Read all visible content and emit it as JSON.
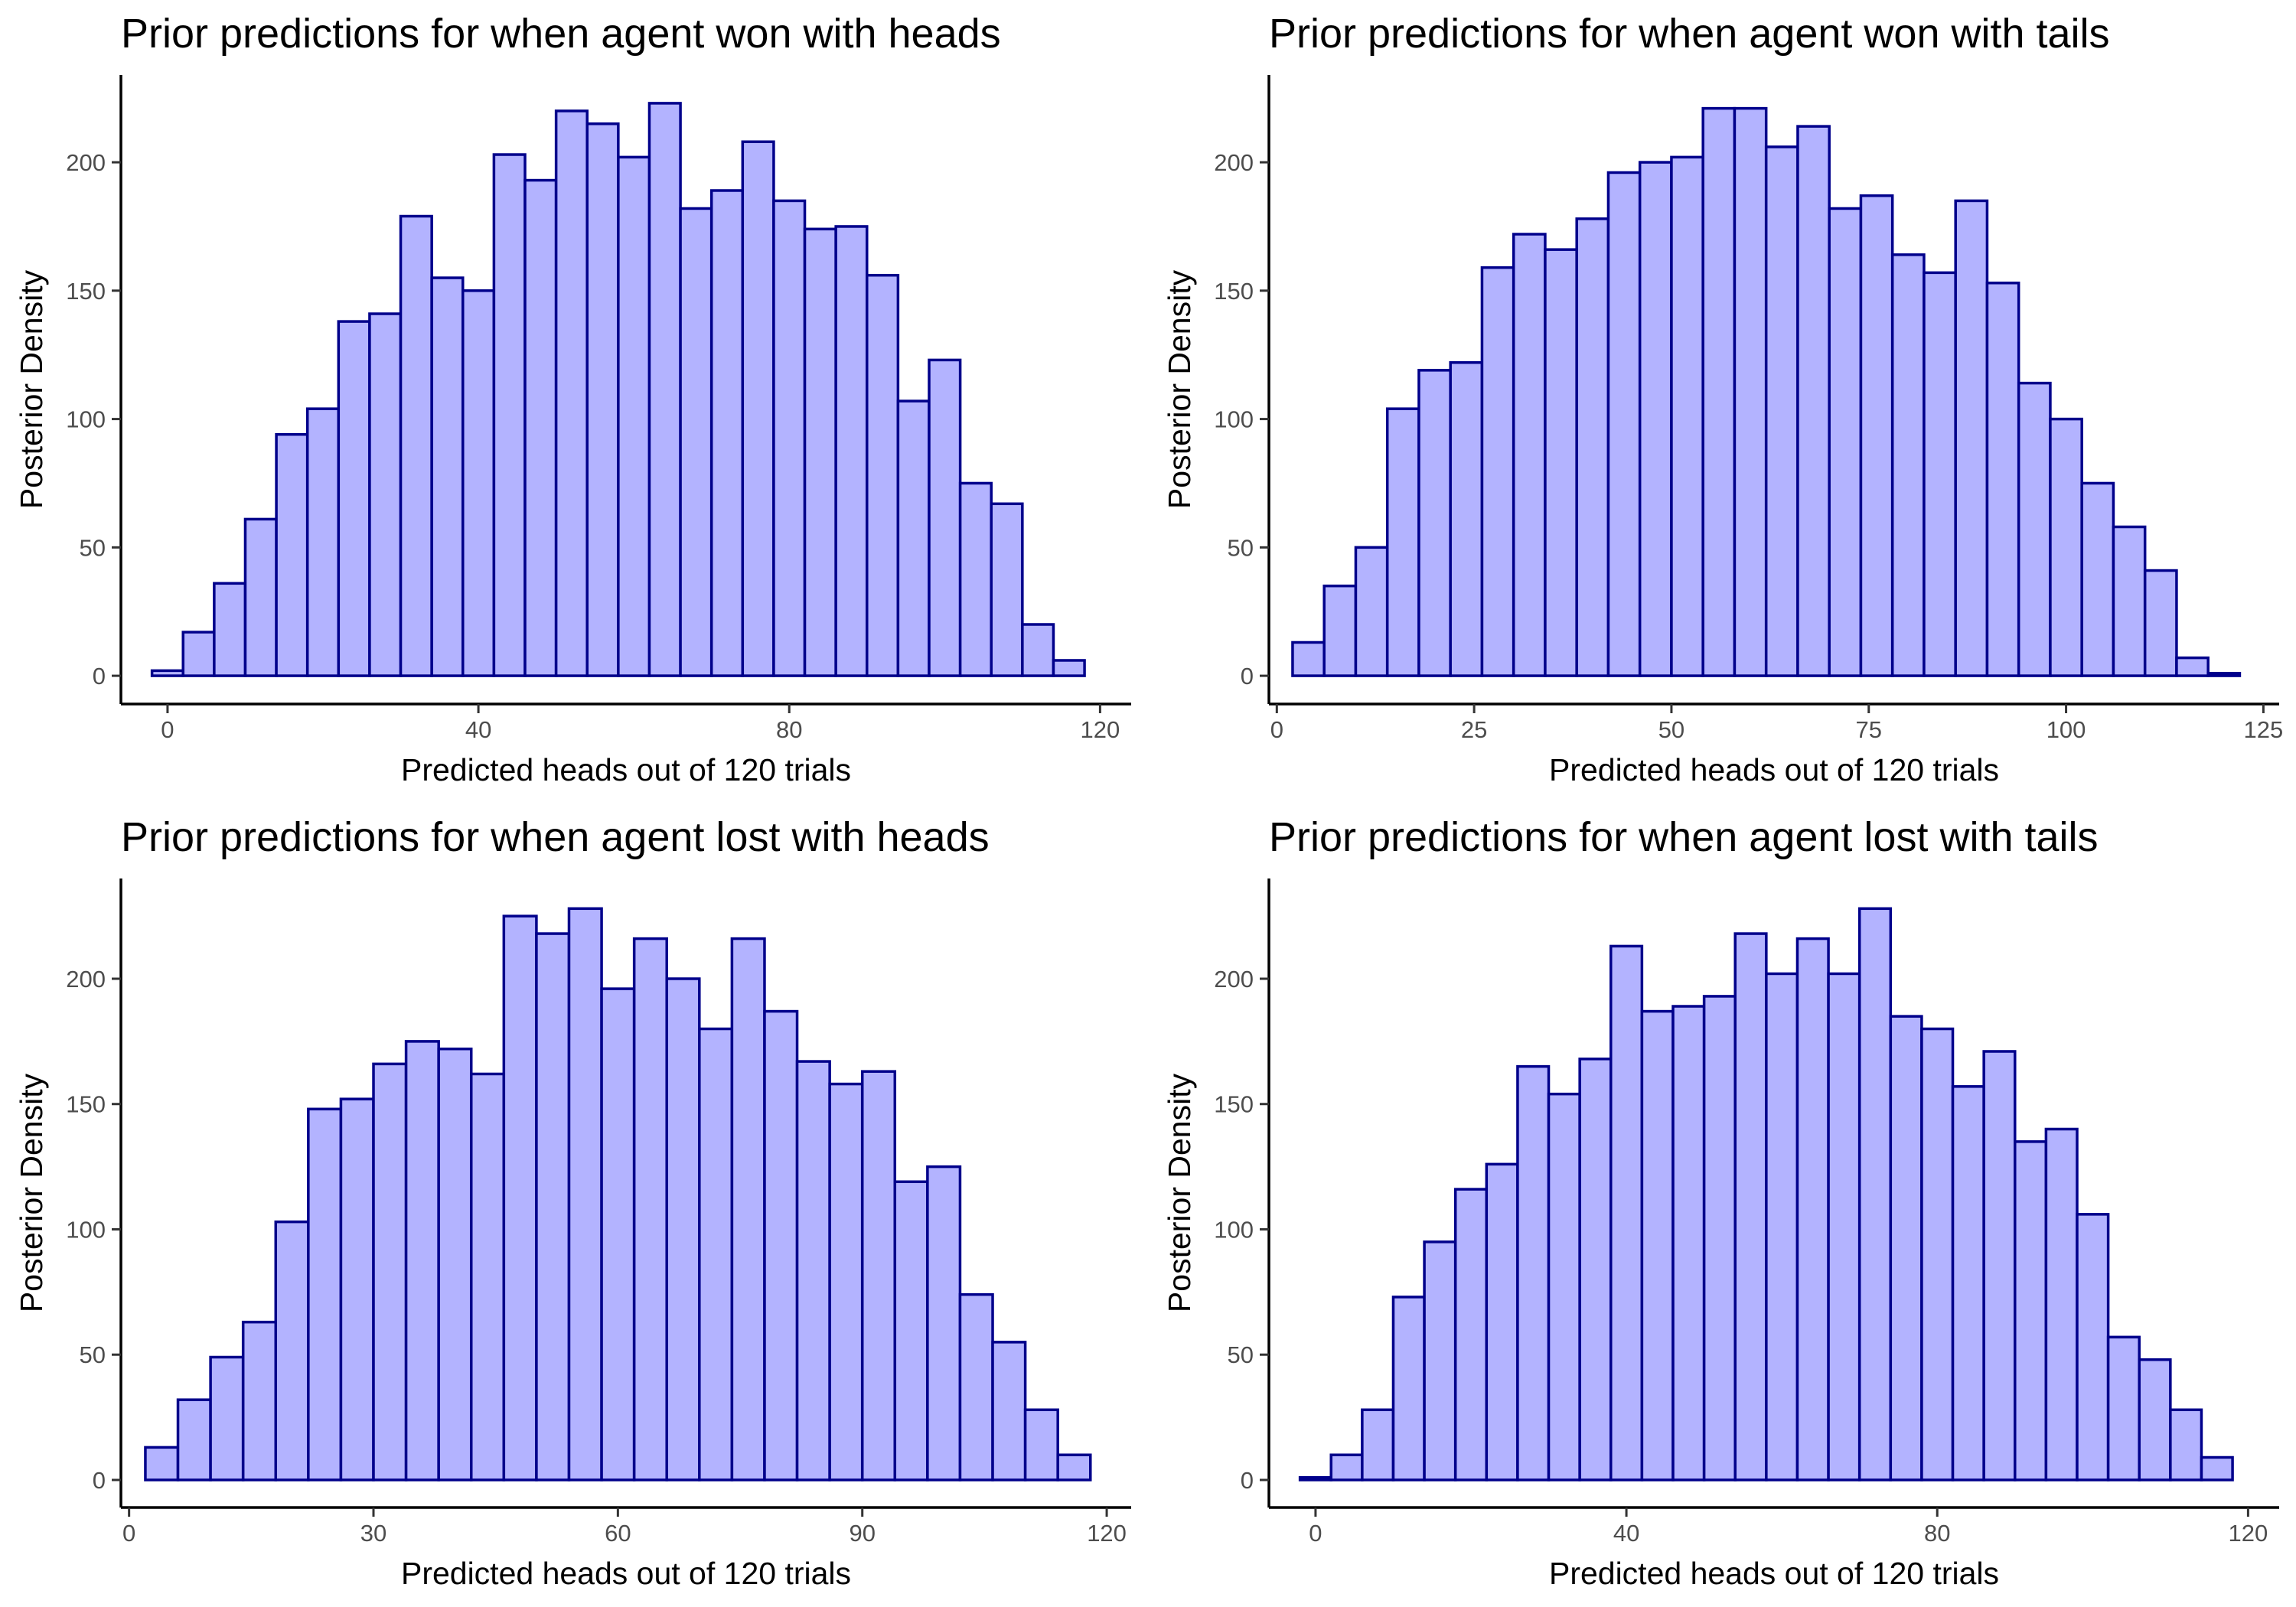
{
  "style": {
    "bar_fill": "#b3b3ff",
    "bar_stroke": "#00008b"
  },
  "chart_data": [
    {
      "type": "bar",
      "title": "Prior predictions for when agent won with heads",
      "xlabel": "Predicted heads out of 120 trials",
      "ylabel": "Posterior Density",
      "xlim": [
        -6,
        124
      ],
      "ylim": [
        -11,
        234
      ],
      "xticks": [
        0,
        40,
        80,
        120
      ],
      "yticks": [
        0,
        50,
        100,
        150,
        200
      ],
      "grid": false,
      "legend": "none",
      "x_start": -2,
      "bin_width": 4,
      "values": [
        2,
        17,
        36,
        61,
        94,
        104,
        138,
        141,
        179,
        155,
        150,
        203,
        193,
        220,
        215,
        202,
        223,
        182,
        189,
        208,
        185,
        174,
        175,
        156,
        107,
        123,
        75,
        67,
        20,
        6
      ]
    },
    {
      "type": "bar",
      "title": "Prior predictions for when agent won with tails",
      "xlabel": "Predicted heads out of 120 trials",
      "ylabel": "Posterior Density",
      "xlim": [
        -1,
        127
      ],
      "ylim": [
        -11,
        234
      ],
      "xticks": [
        0,
        25,
        50,
        75,
        100,
        125
      ],
      "yticks": [
        0,
        50,
        100,
        150,
        200
      ],
      "grid": false,
      "legend": "none",
      "x_start": 2,
      "bin_width": 4,
      "values": [
        13,
        35,
        50,
        104,
        119,
        122,
        159,
        172,
        166,
        178,
        196,
        200,
        202,
        221,
        221,
        206,
        214,
        182,
        187,
        164,
        157,
        185,
        153,
        114,
        100,
        75,
        58,
        41,
        7,
        1
      ]
    },
    {
      "type": "bar",
      "title": "Prior predictions for when agent lost with heads",
      "xlabel": "Predicted heads out of 120 trials",
      "ylabel": "Posterior Density",
      "xlim": [
        -1,
        123
      ],
      "ylim": [
        -11,
        240
      ],
      "xticks": [
        0,
        30,
        60,
        90,
        120
      ],
      "yticks": [
        0,
        50,
        100,
        150,
        200
      ],
      "grid": false,
      "legend": "none",
      "x_start": 2,
      "bin_width": 4,
      "values": [
        13,
        32,
        49,
        63,
        103,
        148,
        152,
        166,
        175,
        172,
        162,
        225,
        218,
        228,
        196,
        216,
        200,
        180,
        216,
        187,
        167,
        158,
        163,
        119,
        125,
        74,
        55,
        28,
        10
      ]
    },
    {
      "type": "bar",
      "title": "Prior predictions for when agent lost with tails",
      "xlabel": "Predicted heads out of 120 trials",
      "ylabel": "Posterior Density",
      "xlim": [
        -6,
        124
      ],
      "ylim": [
        -11,
        240
      ],
      "xticks": [
        0,
        40,
        80,
        120
      ],
      "yticks": [
        0,
        50,
        100,
        150,
        200
      ],
      "grid": false,
      "legend": "none",
      "x_start": -2,
      "bin_width": 4,
      "values": [
        1,
        10,
        28,
        73,
        95,
        116,
        126,
        165,
        154,
        168,
        213,
        187,
        189,
        193,
        218,
        202,
        216,
        202,
        228,
        185,
        180,
        157,
        171,
        135,
        140,
        106,
        57,
        48,
        28,
        9
      ]
    }
  ]
}
